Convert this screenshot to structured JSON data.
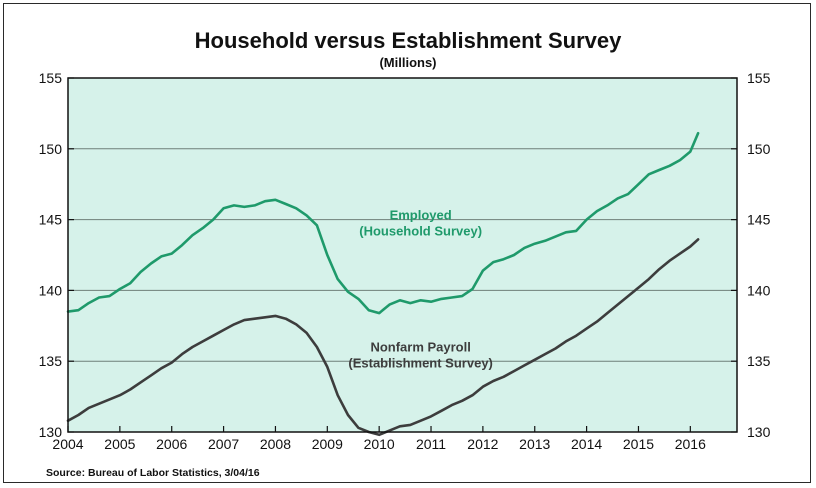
{
  "chart_data": {
    "type": "line",
    "title": "Household versus Establishment Survey",
    "subtitle": "(Millions)",
    "source": "Source:  Bureau of Labor Statistics, 3/04/16",
    "xlim": [
      2004,
      2016.9
    ],
    "ylim": [
      130,
      155
    ],
    "x_ticks": [
      "2004",
      "2005",
      "2006",
      "2007",
      "2008",
      "2009",
      "2010",
      "2011",
      "2012",
      "2013",
      "2014",
      "2015",
      "2016"
    ],
    "y_ticks_left": [
      "130",
      "135",
      "140",
      "145",
      "150",
      "155"
    ],
    "y_ticks_right": [
      "130",
      "135",
      "140",
      "145",
      "150",
      "155"
    ],
    "grid": true,
    "plot_background": "#d6f2ea",
    "series": [
      {
        "name_lines": [
          "Employed",
          "(Household Survey)"
        ],
        "color": "#1f9a6b",
        "x": [
          2004.0,
          2004.2,
          2004.4,
          2004.6,
          2004.8,
          2005.0,
          2005.2,
          2005.4,
          2005.6,
          2005.8,
          2006.0,
          2006.2,
          2006.4,
          2006.6,
          2006.8,
          2007.0,
          2007.2,
          2007.4,
          2007.6,
          2007.8,
          2008.0,
          2008.2,
          2008.4,
          2008.6,
          2008.8,
          2009.0,
          2009.2,
          2009.4,
          2009.6,
          2009.8,
          2010.0,
          2010.2,
          2010.4,
          2010.6,
          2010.8,
          2011.0,
          2011.2,
          2011.4,
          2011.6,
          2011.8,
          2012.0,
          2012.2,
          2012.4,
          2012.6,
          2012.8,
          2013.0,
          2013.2,
          2013.4,
          2013.6,
          2013.8,
          2014.0,
          2014.2,
          2014.4,
          2014.6,
          2014.8,
          2015.0,
          2015.2,
          2015.4,
          2015.6,
          2015.8,
          2016.0,
          2016.15
        ],
        "values": [
          138.5,
          138.6,
          139.1,
          139.5,
          139.6,
          140.1,
          140.5,
          141.3,
          141.9,
          142.4,
          142.6,
          143.2,
          143.9,
          144.4,
          145.0,
          145.8,
          146.0,
          145.9,
          146.0,
          146.3,
          146.4,
          146.1,
          145.8,
          145.3,
          144.6,
          142.5,
          140.8,
          139.9,
          139.4,
          138.6,
          138.4,
          139.0,
          139.3,
          139.1,
          139.3,
          139.2,
          139.4,
          139.5,
          139.6,
          140.1,
          141.4,
          142.0,
          142.2,
          142.5,
          143.0,
          143.3,
          143.5,
          143.8,
          144.1,
          144.2,
          145.0,
          145.6,
          146.0,
          146.5,
          146.8,
          147.5,
          148.2,
          148.5,
          148.8,
          149.2,
          149.8,
          151.1
        ]
      },
      {
        "name_lines": [
          "Nonfarm Payroll",
          "(Establishment Survey)"
        ],
        "color": "#3d3d3d",
        "x": [
          2004.0,
          2004.2,
          2004.4,
          2004.6,
          2004.8,
          2005.0,
          2005.2,
          2005.4,
          2005.6,
          2005.8,
          2006.0,
          2006.2,
          2006.4,
          2006.6,
          2006.8,
          2007.0,
          2007.2,
          2007.4,
          2007.6,
          2007.8,
          2008.0,
          2008.2,
          2008.4,
          2008.6,
          2008.8,
          2009.0,
          2009.2,
          2009.4,
          2009.6,
          2009.8,
          2010.0,
          2010.2,
          2010.4,
          2010.6,
          2010.8,
          2011.0,
          2011.2,
          2011.4,
          2011.6,
          2011.8,
          2012.0,
          2012.2,
          2012.4,
          2012.6,
          2012.8,
          2013.0,
          2013.2,
          2013.4,
          2013.6,
          2013.8,
          2014.0,
          2014.2,
          2014.4,
          2014.6,
          2014.8,
          2015.0,
          2015.2,
          2015.4,
          2015.6,
          2015.8,
          2016.0,
          2016.15
        ],
        "values": [
          130.8,
          131.2,
          131.7,
          132.0,
          132.3,
          132.6,
          133.0,
          133.5,
          134.0,
          134.5,
          134.9,
          135.5,
          136.0,
          136.4,
          136.8,
          137.2,
          137.6,
          137.9,
          138.0,
          138.1,
          138.2,
          138.0,
          137.6,
          137.0,
          136.0,
          134.6,
          132.6,
          131.2,
          130.3,
          130.0,
          129.8,
          130.1,
          130.4,
          130.5,
          130.8,
          131.1,
          131.5,
          131.9,
          132.2,
          132.6,
          133.2,
          133.6,
          133.9,
          134.3,
          134.7,
          135.1,
          135.5,
          135.9,
          136.4,
          136.8,
          137.3,
          137.8,
          138.4,
          139.0,
          139.6,
          140.2,
          140.8,
          141.5,
          142.1,
          142.6,
          143.1,
          143.6
        ]
      }
    ]
  }
}
